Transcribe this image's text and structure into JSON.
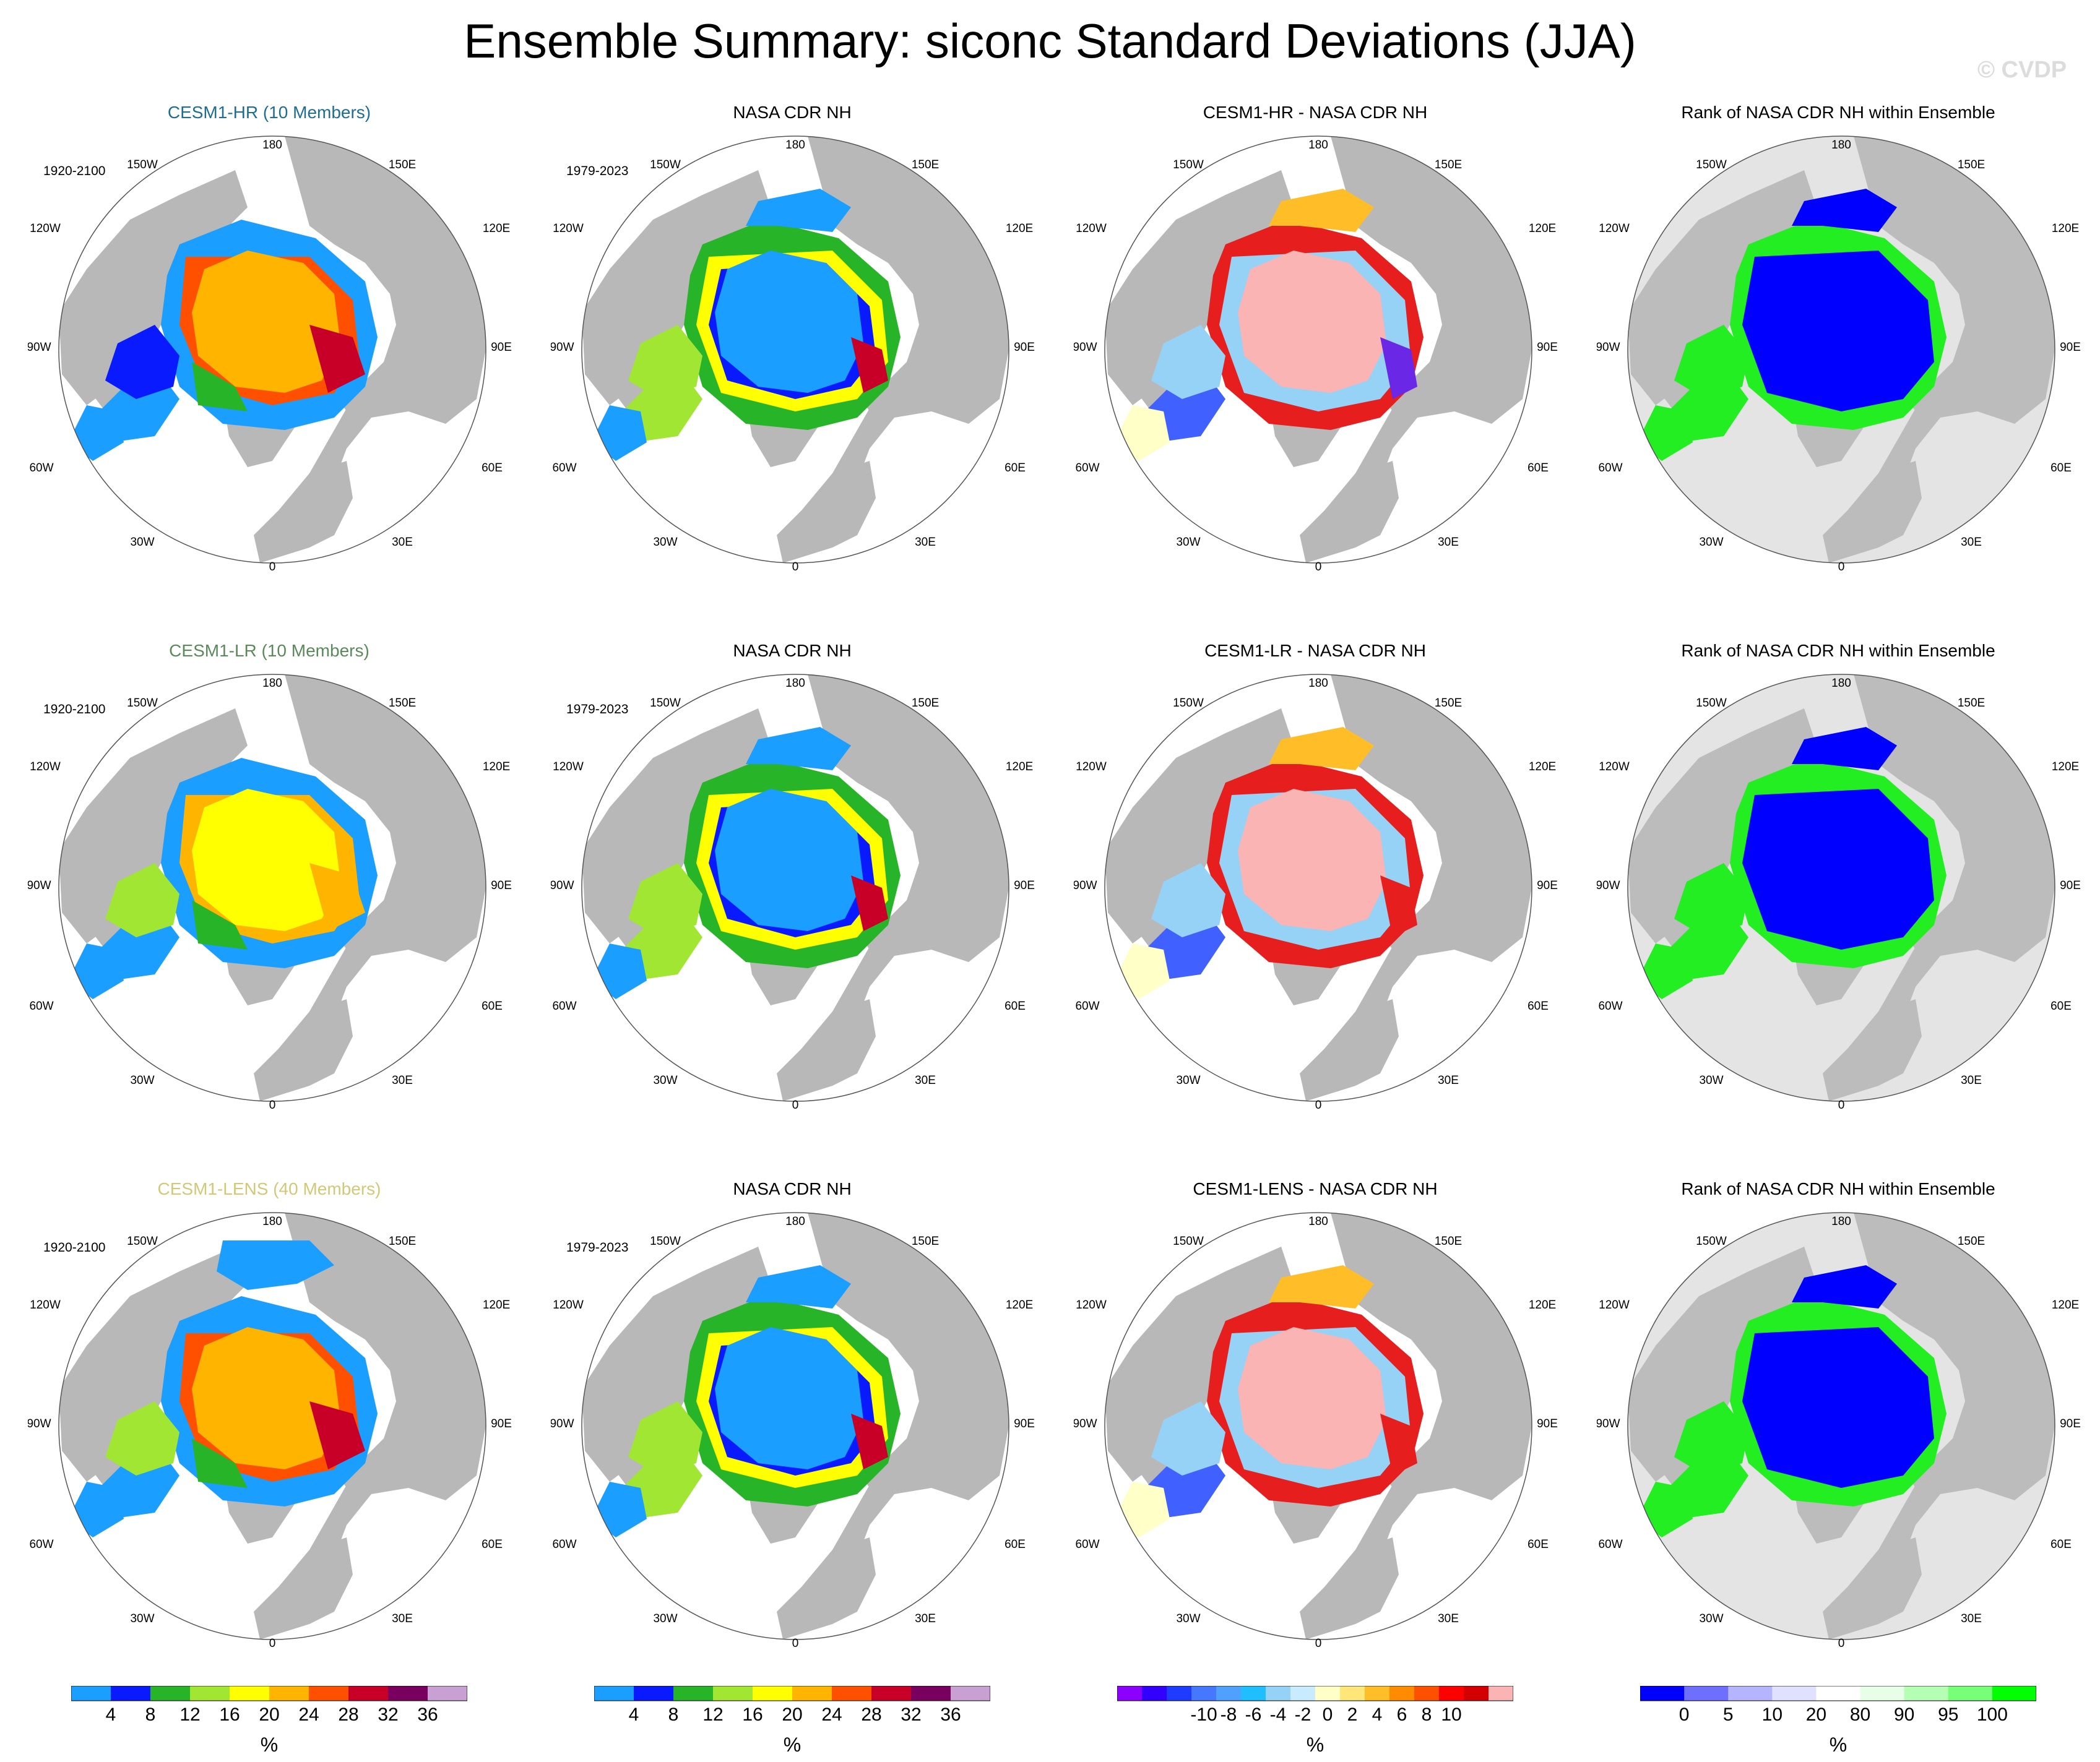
{
  "title": "Ensemble Summary: siconc Standard Deviations (JJA)",
  "watermark": "© CVDP",
  "lon_labels": {
    "top": "180",
    "upper_left": "150W",
    "upper_right": "150E",
    "mid_upper_left": "120W",
    "mid_upper_right": "120E",
    "left": "90W",
    "right": "90E",
    "mid_lower_left": "60W",
    "mid_lower_right": "60E",
    "lower_left": "30W",
    "lower_right": "30E",
    "bottom": "0"
  },
  "colors": {
    "land": "#b8b8b8",
    "rank_land": "#bcbcbc",
    "rank_ocean": "#e4e4e4",
    "hr_title": "#1e6e94",
    "lr_title": "#5a8a5a",
    "lens_title": "#d2c878"
  },
  "rows": [
    {
      "panels": [
        {
          "title": "CESM1-HR (10 Members)",
          "range": "1920-2100",
          "kind": "model"
        },
        {
          "title": "NASA CDR NH",
          "range": "1979-2023",
          "kind": "obs"
        },
        {
          "title": "CESM1-HR - NASA CDR NH",
          "range": "",
          "kind": "diff"
        },
        {
          "title": "Rank of NASA CDR NH within Ensemble",
          "range": "",
          "kind": "rank"
        }
      ]
    },
    {
      "panels": [
        {
          "title": "CESM1-LR (10 Members)",
          "range": "1920-2100",
          "kind": "model"
        },
        {
          "title": "NASA CDR NH",
          "range": "1979-2023",
          "kind": "obs"
        },
        {
          "title": "CESM1-LR - NASA CDR NH",
          "range": "",
          "kind": "diff"
        },
        {
          "title": "Rank of NASA CDR NH within Ensemble",
          "range": "",
          "kind": "rank"
        }
      ]
    },
    {
      "panels": [
        {
          "title": "CESM1-LENS (40 Members)",
          "range": "1920-2100",
          "kind": "model"
        },
        {
          "title": "NASA CDR NH",
          "range": "1979-2023",
          "kind": "obs"
        },
        {
          "title": "CESM1-LENS - NASA CDR NH",
          "range": "",
          "kind": "diff"
        },
        {
          "title": "Rank of NASA CDR NH within Ensemble",
          "range": "",
          "kind": "rank"
        }
      ]
    }
  ],
  "colorbars": [
    {
      "units": "%",
      "labels": [
        "4",
        "8",
        "12",
        "16",
        "20",
        "24",
        "28",
        "32",
        "36"
      ],
      "colors": [
        "#1a9eff",
        "#0a1aff",
        "#28b428",
        "#a0e632",
        "#ffff00",
        "#ffb400",
        "#ff5000",
        "#c80028",
        "#7a0060",
        "#c8a0d2"
      ]
    },
    {
      "units": "%",
      "labels": [
        "4",
        "8",
        "12",
        "16",
        "20",
        "24",
        "28",
        "32",
        "36"
      ],
      "colors": [
        "#1a9eff",
        "#0a1aff",
        "#28b428",
        "#a0e632",
        "#ffff00",
        "#ffb400",
        "#ff5000",
        "#c80028",
        "#7a0060",
        "#c8a0d2"
      ]
    },
    {
      "units": "%",
      "labels": [
        "-10",
        "-8",
        "-6",
        "-4",
        "-2",
        "0",
        "2",
        "4",
        "6",
        "8",
        "10"
      ],
      "colors": [
        "#8c00ff",
        "#3200ff",
        "#1e3cff",
        "#4678ff",
        "#50a0ff",
        "#1ebeff",
        "#96d2f5",
        "#c8ebff",
        "#ffffc8",
        "#ffe678",
        "#ffbe28",
        "#ff8c00",
        "#ff5000",
        "#ff0000",
        "#d20000",
        "#fab4b4"
      ]
    },
    {
      "units": "%",
      "labels": [
        "0",
        "5",
        "10",
        "20",
        "80",
        "90",
        "95",
        "100"
      ],
      "colors": [
        "#0000ff",
        "#6e6eff",
        "#b4b4ff",
        "#e0e0ff",
        "#ffffff",
        "#e6ffe6",
        "#b4ffb4",
        "#78ff78",
        "#00ff00"
      ]
    }
  ],
  "chart_data": [
    {
      "type": "heatmap",
      "title": "Ensemble Summary: siconc Standard Deviations (JJA)",
      "projection": "north polar stereographic",
      "variable": "siconc standard deviation (%)",
      "panel_grid": "3 rows x 4 columns",
      "series": [
        {
          "name": "CESM1-HR (10 Members)",
          "period": "1920-2100",
          "dominant_values_pct": [
            24,
            28
          ],
          "marginal_values_pct": [
            4,
            8,
            16,
            32
          ]
        },
        {
          "name": "CESM1-LR (10 Members)",
          "period": "1920-2100",
          "dominant_values_pct": [
            20,
            24
          ],
          "marginal_values_pct": [
            4,
            12,
            28
          ]
        },
        {
          "name": "CESM1-LENS (40 Members)",
          "period": "1920-2100",
          "dominant_values_pct": [
            24,
            28
          ],
          "marginal_values_pct": [
            4,
            16,
            32
          ]
        },
        {
          "name": "NASA CDR NH",
          "period": "1979-2023",
          "dominant_values_pct": [
            4
          ],
          "marginal_values_pct": [
            8,
            12,
            16,
            20,
            24,
            28,
            32
          ]
        },
        {
          "name": "Model - NASA CDR NH",
          "central_arctic_difference_pct": 10,
          "marginal_difference_range_pct": [
            -10,
            10
          ]
        },
        {
          "name": "Rank of NASA CDR NH within Ensemble",
          "central_arctic_rank_pct": [
            0,
            5
          ],
          "marginal_rank_pct": [
            95,
            100
          ]
        }
      ],
      "colorbar_levels": {
        "std_dev_pct": [
          4,
          8,
          12,
          16,
          20,
          24,
          28,
          32,
          36
        ],
        "difference_pct": [
          -10,
          -8,
          -6,
          -4,
          -2,
          0,
          2,
          4,
          6,
          8,
          10
        ],
        "rank_pct": [
          0,
          5,
          10,
          20,
          80,
          90,
          95,
          100
        ]
      }
    }
  ]
}
